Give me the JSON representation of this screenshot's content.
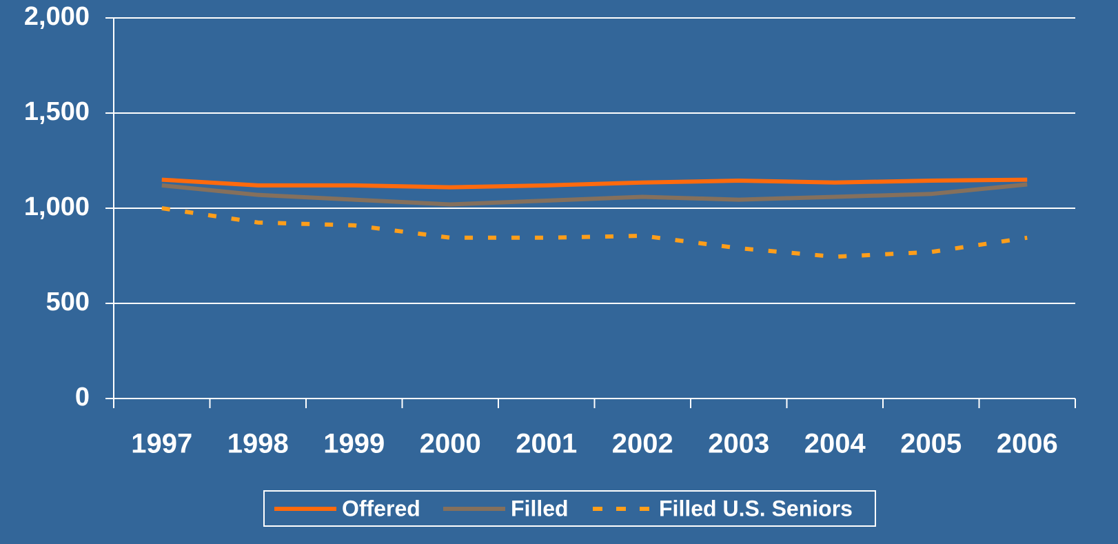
{
  "chart_data": {
    "type": "line",
    "categories": [
      "1997",
      "1998",
      "1999",
      "2000",
      "2001",
      "2002",
      "2003",
      "2004",
      "2005",
      "2006"
    ],
    "series": [
      {
        "name": "Offered",
        "color": "#ff6a0d",
        "line_style": "solid",
        "values": [
          1150,
          1120,
          1120,
          1110,
          1120,
          1135,
          1145,
          1135,
          1145,
          1150
        ]
      },
      {
        "name": "Filled",
        "color": "#85705c",
        "line_style": "solid",
        "values": [
          1120,
          1070,
          1045,
          1020,
          1040,
          1060,
          1045,
          1060,
          1075,
          1125
        ]
      },
      {
        "name": "Filled U.S. Seniors",
        "color": "#ff9e1a",
        "line_style": "dashed",
        "values": [
          1000,
          925,
          910,
          845,
          845,
          855,
          790,
          745,
          770,
          845
        ]
      }
    ],
    "ylim": [
      0,
      2000
    ],
    "yticks": [
      0,
      500,
      {
        "value": 1000,
        "label": "1,000"
      },
      {
        "value": 1500,
        "label": "1,500"
      },
      {
        "value": 2000,
        "label": "2,000"
      }
    ],
    "grid": true,
    "legend": "bottom"
  }
}
